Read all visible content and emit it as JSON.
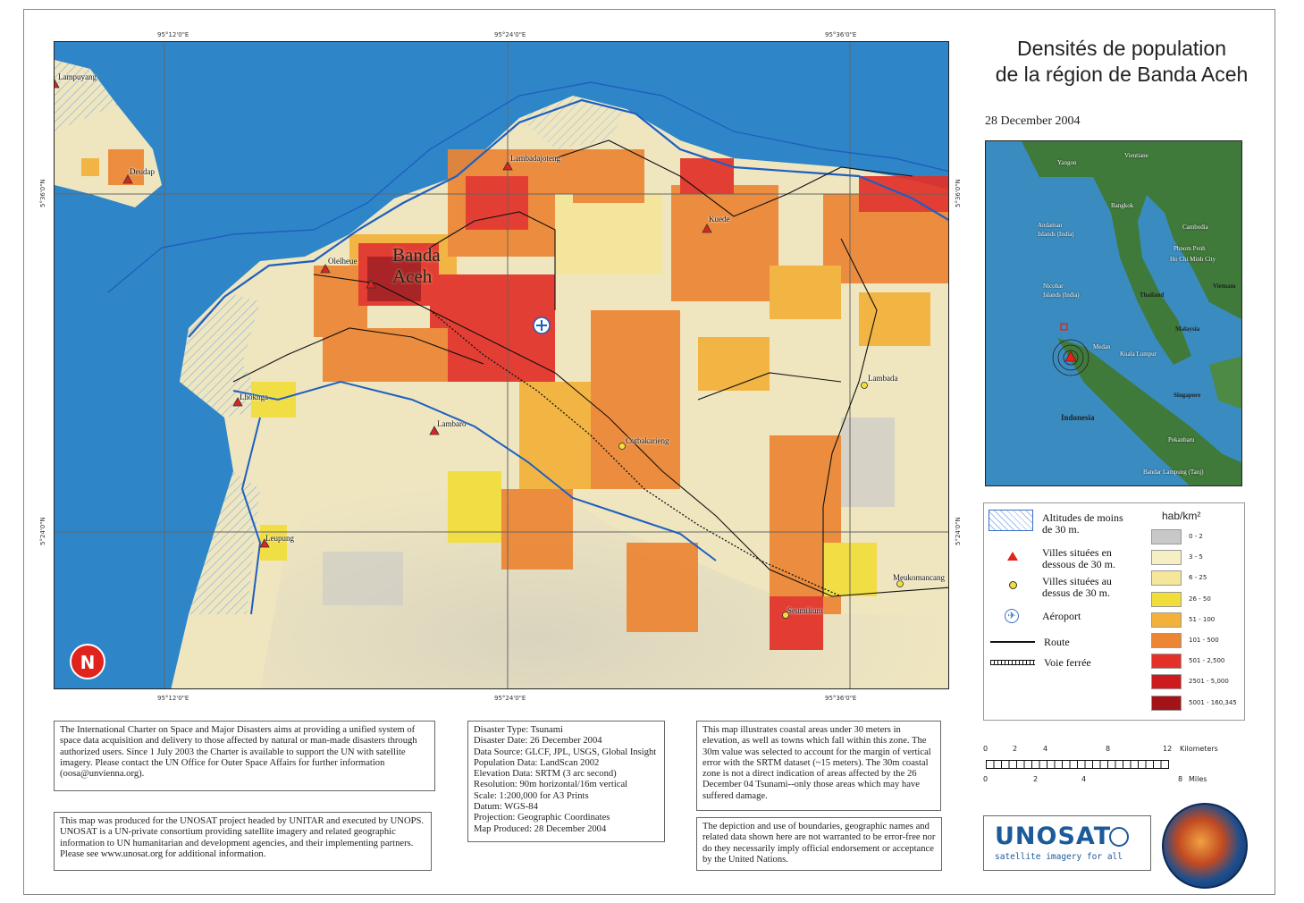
{
  "title_line1": "Densités de population",
  "title_line2": "de la région de Banda Aceh",
  "date": "28 December 2004",
  "map": {
    "coords_top": [
      "95°12'0\"E",
      "95°24'0\"E",
      "95°36'0\"E"
    ],
    "coords_bottom": [
      "95°12'0\"E",
      "95°24'0\"E",
      "95°36'0\"E"
    ],
    "coords_side": [
      "5°36'0\"N",
      "5°24'0\"N"
    ],
    "city_line1": "Banda",
    "city_line2": "Aceh",
    "towns_low": [
      "Lampuyang",
      "Deudap",
      "Lambadajoteng",
      "Kuede",
      "Olelheue",
      "Lhoknga",
      "Lambaro",
      "Leupung"
    ],
    "towns_high": [
      "Lambada",
      "Cotbakarieng",
      "Meukomancang",
      "Seumilium"
    ],
    "north_arrow": "N"
  },
  "inset": {
    "labels": [
      "Yangon",
      "Vientiane",
      "Andaman",
      "Islands (India)",
      "Bangkok",
      "Cambodia",
      "Phnom Penh",
      "Ho Chi Minh City",
      "Nicobar",
      "Islands (India)",
      "Thailand",
      "Vietnam",
      "Malaysia",
      "Medan",
      "Kuala Lumpur",
      "Singapore",
      "Indonesia",
      "Pekanbaru",
      "Bandar Lampung (Tanj)"
    ]
  },
  "legend": {
    "items": [
      "Altitudes de moins de 30 m.",
      "Villes situées en dessous de 30 m.",
      "Villes situées au dessus de 30 m.",
      "Aéroport",
      "Route",
      "Voie ferrée"
    ],
    "density_header": "hab/km²",
    "classes": [
      {
        "label": "0 - 2",
        "color": "#c8c8c8"
      },
      {
        "label": "3 - 5",
        "color": "#f6efc4"
      },
      {
        "label": "6 - 25",
        "color": "#f4e69a"
      },
      {
        "label": "26 - 50",
        "color": "#f2de3a"
      },
      {
        "label": "51 - 100",
        "color": "#f3b13a"
      },
      {
        "label": "101 - 500",
        "color": "#ec8534"
      },
      {
        "label": "501 - 2,500",
        "color": "#e33028"
      },
      {
        "label": "2501 - 5,000",
        "color": "#cc1a1e"
      },
      {
        "label": "5001 - 160,345",
        "color": "#a31419"
      }
    ]
  },
  "scale": {
    "km_ticks": [
      "0",
      "2",
      "4",
      "8",
      "12"
    ],
    "km_unit": "Kilometers",
    "mi_ticks": [
      "0",
      "2",
      "4",
      "8"
    ],
    "mi_unit": "Miles"
  },
  "text": {
    "charter": "The International Charter on Space and Major Disasters aims at providing a unified system of space data acquisition and delivery to those affected by natural or man-made disasters through authorized users. Since 1 July 2003 the Charter is available to support the UN with satellite imagery. Please contact the UN Office for Outer Space Affairs for further information (oosa@unvienna.org).",
    "unosat": "This map was produced for the UNOSAT project headed by UNITAR and executed by UNOPS. UNOSAT is a UN-private consortium providing satellite imagery and related geographic information to UN humanitarian and development agencies, and their implementing partners. Please see www.unosat.org for additional information.",
    "meta": [
      "Disaster Type: Tsunami",
      "Disaster Date: 26 December 2004",
      "Data Source: GLCF, JPL, USGS, Global Insight",
      "Population Data: LandScan 2002",
      "Elevation Data: SRTM (3 arc second)",
      "Resolution: 90m horizontal/16m vertical",
      "Scale: 1:200,000 for A3 Prints",
      "Datum: WGS-84",
      "Projection: Geographic Coordinates",
      "Map Produced: 28 December 2004"
    ],
    "coastal": "This map illustrates coastal areas under 30 meters in elevation, as well as towns which fall within this zone. The 30m value was selected to account for the margin of vertical error with the SRTM dataset (~15 meters). The 30m coastal zone is not a direct indication of areas affected by the 26 December 04 Tsunami--only those areas which may have suffered damage.",
    "disclaimer": "The depiction and use of boundaries, geographic names and related data shown here are not warranted to be error-free nor do they necessarily imply official endorsement or acceptance by the United Nations."
  },
  "logo": {
    "name": "UNOSAT",
    "tagline": "satellite imagery for all"
  },
  "colors": {
    "sea": "#2e86c8",
    "land": "#efe6c0",
    "coast_line": "#1f5fc0"
  }
}
